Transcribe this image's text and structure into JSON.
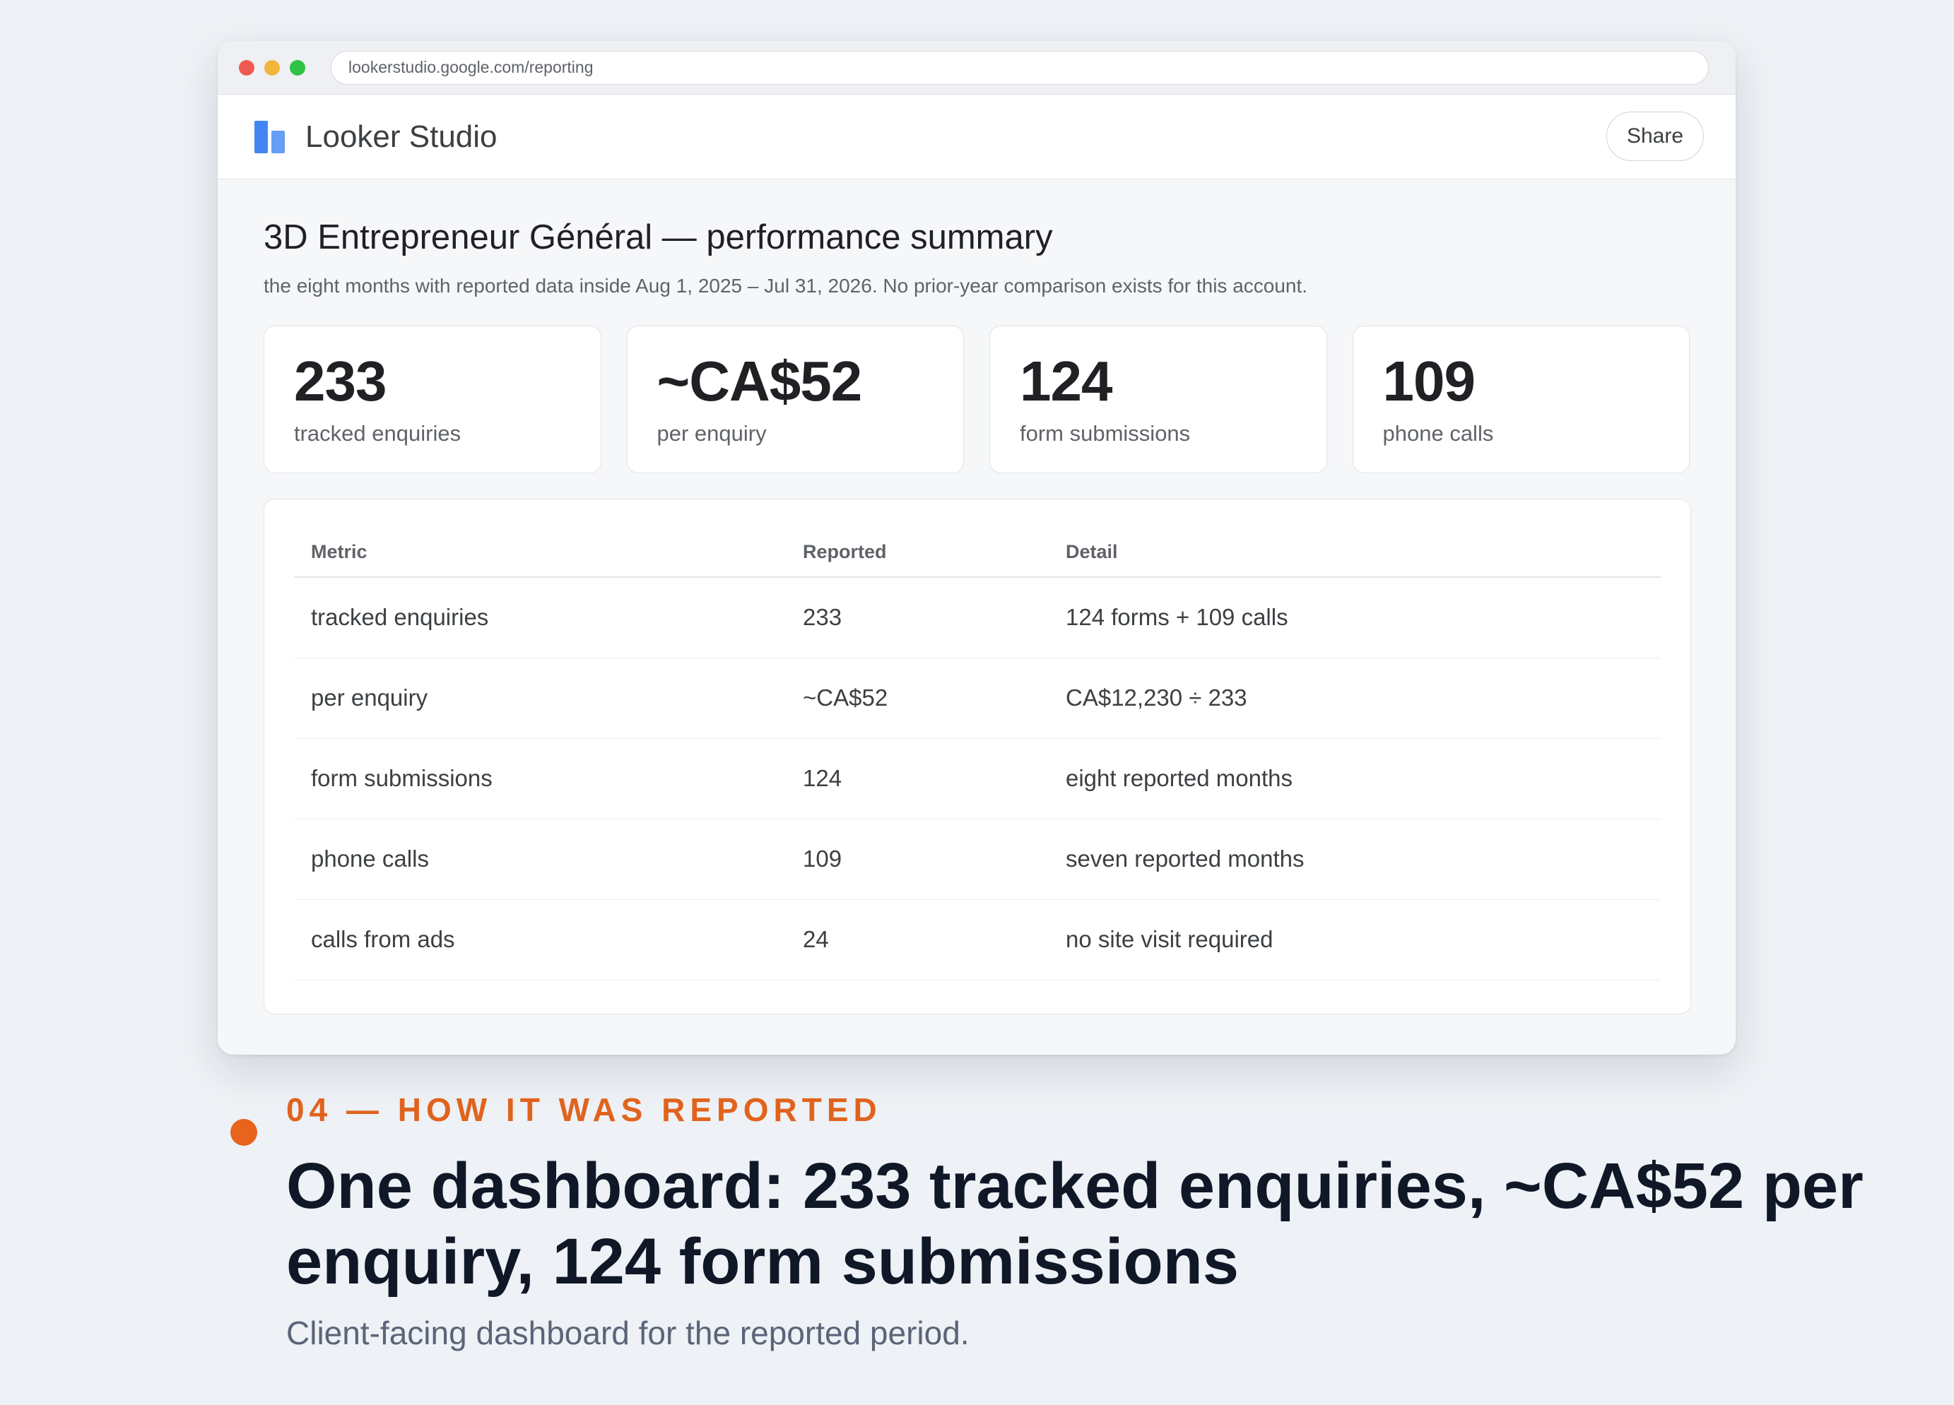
{
  "browser": {
    "url": "lookerstudio.google.com/reporting"
  },
  "app": {
    "name": "Looker Studio",
    "share_label": "Share"
  },
  "report": {
    "title": "3D Entrepreneur Général — performance summary",
    "subtitle": "the eight months with reported data inside Aug 1, 2025 – Jul 31, 2026. No prior-year comparison exists for this account."
  },
  "kpis": [
    {
      "value": "233",
      "label": "tracked enquiries"
    },
    {
      "value": "~CA$52",
      "label": "per enquiry"
    },
    {
      "value": "124",
      "label": "form submissions"
    },
    {
      "value": "109",
      "label": "phone calls"
    }
  ],
  "table": {
    "headers": [
      "Metric",
      "Reported",
      "Detail"
    ],
    "rows": [
      [
        "tracked enquiries",
        "233",
        "124 forms + 109 calls"
      ],
      [
        "per enquiry",
        "~CA$52",
        "CA$12,230 ÷ 233"
      ],
      [
        "form submissions",
        "124",
        "eight reported months"
      ],
      [
        "phone calls",
        "109",
        "seven reported months"
      ],
      [
        "calls from ads",
        "24",
        "no site visit required"
      ]
    ]
  },
  "caption": {
    "eyebrow": "04 — HOW IT WAS REPORTED",
    "headline": "One dashboard: 233 tracked enquiries, ~CA$52 per enquiry, 124 form submissions",
    "subline": "Client-facing dashboard for the reported period."
  },
  "colors": {
    "accent_orange": "#e8631c",
    "looker_blue": "#4285f4",
    "headline": "#101828"
  }
}
